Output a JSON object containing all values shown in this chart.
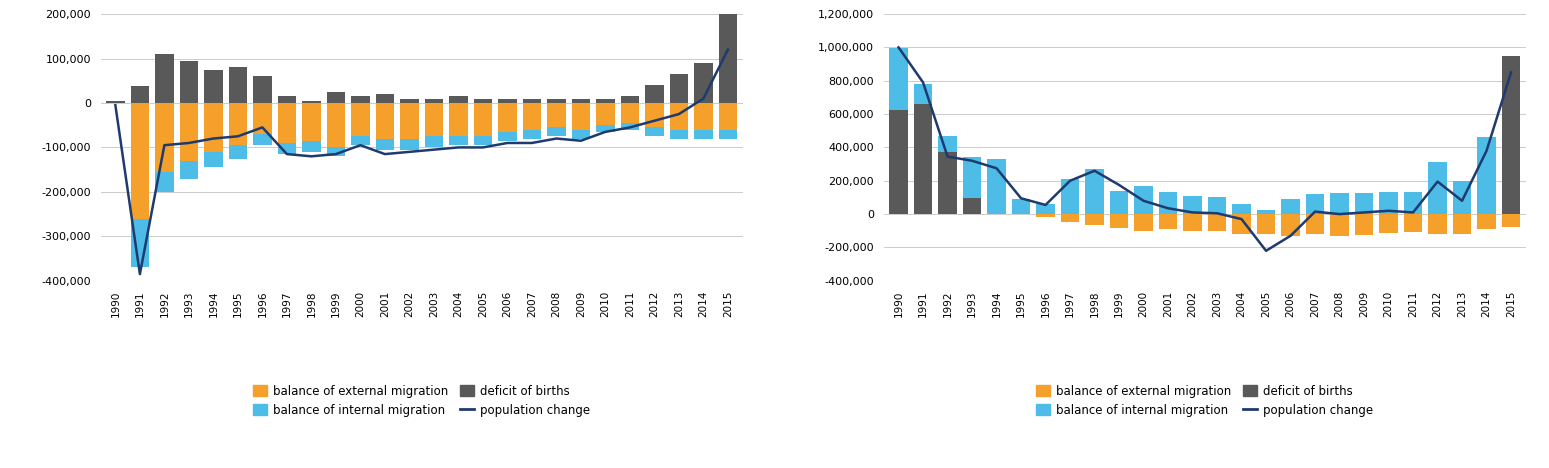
{
  "years": [
    1990,
    1991,
    1992,
    1993,
    1994,
    1995,
    1996,
    1997,
    1998,
    1999,
    2000,
    2001,
    2002,
    2003,
    2004,
    2005,
    2006,
    2007,
    2008,
    2009,
    2010,
    2011,
    2012,
    2013,
    2014,
    2015
  ],
  "left": {
    "external_migration": [
      0,
      -260000,
      -155000,
      -130000,
      -110000,
      -95000,
      -70000,
      -90000,
      -85000,
      -100000,
      -75000,
      -80000,
      -80000,
      -75000,
      -75000,
      -75000,
      -65000,
      -60000,
      -55000,
      -60000,
      -50000,
      -45000,
      -55000,
      -60000,
      -60000,
      -60000
    ],
    "internal_migration": [
      0,
      -110000,
      -45000,
      -40000,
      -35000,
      -30000,
      -25000,
      -25000,
      -25000,
      -20000,
      -20000,
      -25000,
      -25000,
      -25000,
      -20000,
      -20000,
      -20000,
      -20000,
      -20000,
      -20000,
      -15000,
      -15000,
      -20000,
      -20000,
      -20000,
      -20000
    ],
    "deficit_of_births": [
      5000,
      38000,
      110000,
      95000,
      75000,
      80000,
      60000,
      15000,
      5000,
      25000,
      15000,
      20000,
      10000,
      10000,
      15000,
      10000,
      10000,
      10000,
      10000,
      10000,
      10000,
      15000,
      40000,
      65000,
      90000,
      200000
    ],
    "population_change": [
      -5000,
      -385000,
      -95000,
      -90000,
      -80000,
      -75000,
      -55000,
      -115000,
      -120000,
      -115000,
      -95000,
      -115000,
      -110000,
      -105000,
      -100000,
      -100000,
      -90000,
      -90000,
      -80000,
      -85000,
      -65000,
      -55000,
      -40000,
      -25000,
      10000,
      120000
    ]
  },
  "right": {
    "external_migration": [
      0,
      0,
      0,
      0,
      0,
      0,
      -15000,
      -45000,
      -65000,
      -85000,
      -100000,
      -90000,
      -100000,
      -100000,
      -120000,
      -120000,
      -130000,
      -120000,
      -130000,
      -125000,
      -115000,
      -110000,
      -120000,
      -120000,
      -90000,
      -80000
    ],
    "internal_migration": [
      370000,
      120000,
      100000,
      250000,
      330000,
      90000,
      60000,
      210000,
      270000,
      140000,
      170000,
      130000,
      110000,
      100000,
      60000,
      25000,
      90000,
      120000,
      125000,
      125000,
      130000,
      130000,
      310000,
      200000,
      465000,
      0
    ],
    "deficit_of_births": [
      625000,
      660000,
      370000,
      95000,
      0,
      0,
      0,
      0,
      0,
      0,
      0,
      0,
      0,
      0,
      0,
      0,
      0,
      0,
      0,
      0,
      0,
      0,
      0,
      0,
      0,
      950000
    ],
    "population_change": [
      1000000,
      790000,
      345000,
      320000,
      275000,
      95000,
      55000,
      200000,
      260000,
      175000,
      80000,
      35000,
      10000,
      5000,
      -30000,
      -220000,
      -130000,
      15000,
      0,
      10000,
      20000,
      10000,
      195000,
      80000,
      380000,
      850000
    ]
  },
  "colors": {
    "external_migration": "#f5a02a",
    "internal_migration": "#4dbde8",
    "deficit_of_births": "#595959",
    "population_change": "#1e3a6e"
  },
  "left_ylim": [
    -400000,
    200000
  ],
  "right_ylim": [
    -400000,
    1200000
  ],
  "left_ytick_step": 100000,
  "right_ytick_step": 200000,
  "legend_labels": [
    "balance of external migration",
    "balance of internal migration",
    "deficit of births",
    "population change"
  ]
}
